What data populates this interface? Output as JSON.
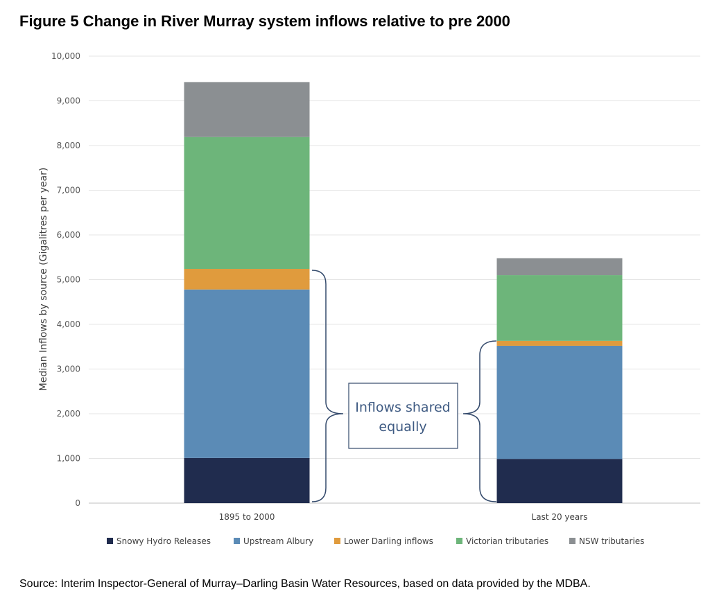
{
  "figure": {
    "title": "Figure 5 Change in River Murray system inflows relative to pre 2000",
    "source": "Source: Interim Inspector-General of Murray–Darling Basin Water Resources, based on data provided by the MDBA."
  },
  "chart_data": {
    "type": "bar",
    "stacked": true,
    "categories": [
      "1895 to 2000",
      "Last 20 years"
    ],
    "series": [
      {
        "name": "Snowy Hydro Releases",
        "color": "#202c4e",
        "values": [
          1010,
          990
        ]
      },
      {
        "name": "Upstream Albury",
        "color": "#5b8bb6",
        "values": [
          3770,
          2530
        ]
      },
      {
        "name": "Lower Darling inflows",
        "color": "#e09b3d",
        "values": [
          460,
          110
        ]
      },
      {
        "name": "Victorian tributaries",
        "color": "#6db57a",
        "values": [
          2950,
          1470
        ]
      },
      {
        "name": "NSW tributaries",
        "color": "#8b8f92",
        "values": [
          1230,
          380
        ]
      }
    ],
    "ylabel": "Median Inflows by source (Gigalitres per year)",
    "ylim": [
      0,
      10000
    ],
    "yticks": [
      0,
      1000,
      2000,
      3000,
      4000,
      5000,
      6000,
      7000,
      8000,
      9000,
      10000
    ],
    "ytick_labels": [
      "0",
      "1,000",
      "2,000",
      "3,000",
      "4,000",
      "5,000",
      "6,000",
      "7,000",
      "8,000",
      "9,000",
      "10,000"
    ],
    "grid": true,
    "legend_position": "bottom",
    "annotation": {
      "line1": "Inflows shared",
      "line2": "equally"
    }
  }
}
